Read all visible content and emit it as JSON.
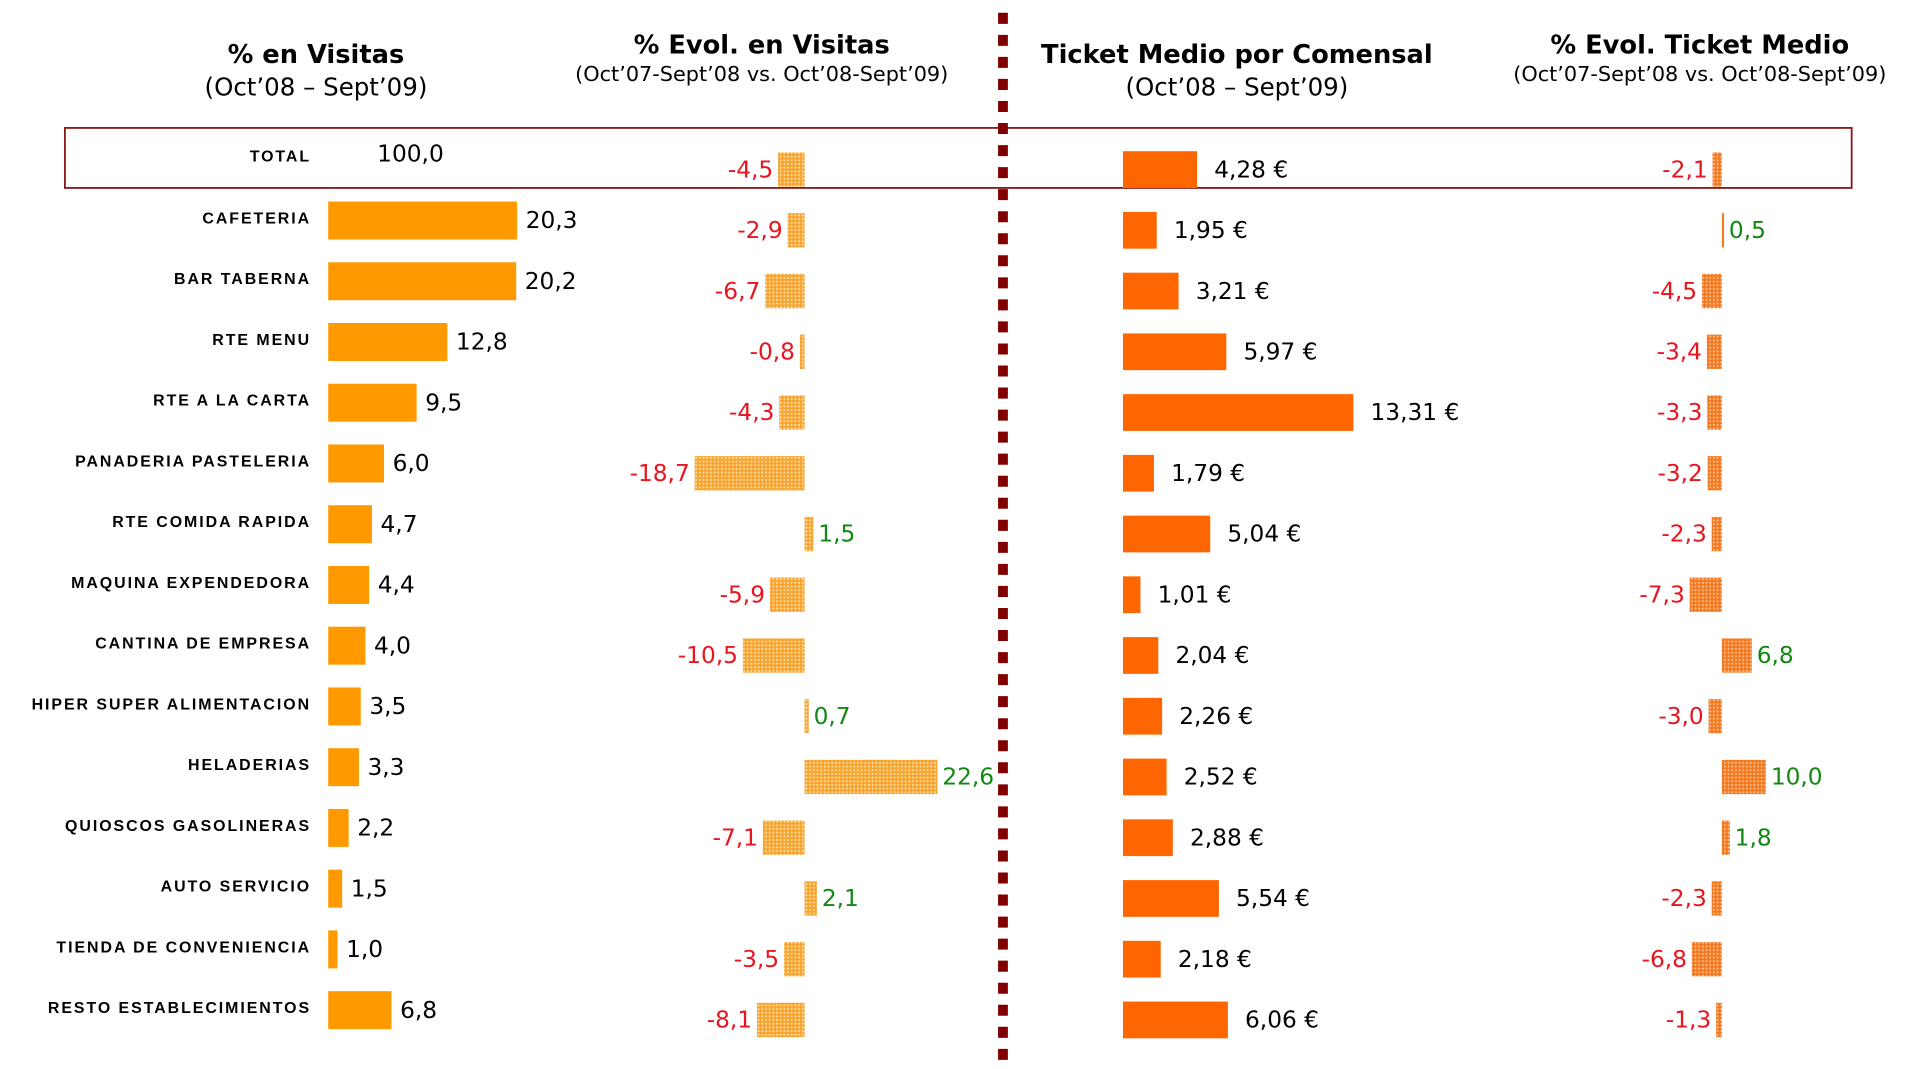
{
  "chart_data": [
    {
      "type": "hbar",
      "title": "% en Visitas",
      "subtitle": "(Oct’08 – Sept’09)",
      "total": {
        "label": "TOTAL",
        "value": 100.0,
        "value_label": "100,0"
      },
      "categories": [
        "CAFETERIA",
        "BAR TABERNA",
        "RTE MENU",
        "RTE A LA CARTA",
        "PANADERIA PASTELERIA",
        "RTE COMIDA RAPIDA",
        "MAQUINA EXPENDEDORA",
        "CANTINA DE EMPRESA",
        "HIPER SUPER ALIMENTACION",
        "HELADERIAS",
        "QUIOSCOS GASOLINERAS",
        "AUTO SERVICIO",
        "TIENDA DE CONVENIENCIA",
        "RESTO ESTABLECIMIENTOS"
      ],
      "values": [
        20.3,
        20.2,
        12.8,
        9.5,
        6.0,
        4.7,
        4.4,
        4.0,
        3.5,
        3.3,
        2.2,
        1.5,
        1.0,
        6.8
      ],
      "value_labels": [
        "20,3",
        "20,2",
        "12,8",
        "9,5",
        "6,0",
        "4,7",
        "4,4",
        "4,0",
        "3,5",
        "3,3",
        "2,2",
        "1,5",
        "1,0",
        "6,8"
      ],
      "color": "#ff9900",
      "hatched": false,
      "xlim": [
        0,
        25
      ]
    },
    {
      "type": "hbar",
      "title": "% Evol. en Visitas",
      "subtitle": "(Oct’07-Sept’08 vs. Oct’08-Sept’09)",
      "values": [
        -4.5,
        -2.9,
        -6.7,
        -0.8,
        -4.3,
        -18.7,
        1.5,
        -5.9,
        -10.5,
        0.7,
        22.6,
        -7.1,
        2.1,
        -3.5,
        -8.1
      ],
      "value_labels": [
        "-4,5",
        "-2,9",
        "-6,7",
        "-0,8",
        "-4,3",
        "-18,7",
        "1,5",
        "-5,9",
        "-10,5",
        "0,7",
        "22,6",
        "-7,1",
        "2,1",
        "-3,5",
        "-8,1"
      ],
      "color": "#f7a530",
      "hatched": true,
      "positive_color": "#118811",
      "negative_color": "#e8141e",
      "xlim": [
        -20,
        25
      ]
    },
    {
      "type": "hbar",
      "title": "Ticket Medio por Comensal",
      "subtitle": "(Oct’08 – Sept’09)",
      "values": [
        4.28,
        1.95,
        3.21,
        5.97,
        13.31,
        1.79,
        5.04,
        1.01,
        2.04,
        2.26,
        2.52,
        2.88,
        5.54,
        2.18,
        6.06
      ],
      "value_labels": [
        "4,28 €",
        "1,95 €",
        "3,21 €",
        "5,97 €",
        "13,31 €",
        "1,79 €",
        "5,04 €",
        "1,01 €",
        "2,04 €",
        "2,26 €",
        "2,52 €",
        "2,88 €",
        "5,54 €",
        "2,18 €",
        "6,06 €"
      ],
      "color": "#ff6600",
      "hatched": false,
      "xlim": [
        0,
        15
      ]
    },
    {
      "type": "hbar",
      "title": "% Evol. Ticket Medio",
      "subtitle": "(Oct’07-Sept’08 vs. Oct’08-Sept’09)",
      "values": [
        -2.1,
        0.5,
        -4.5,
        -3.4,
        -3.3,
        -3.2,
        -2.3,
        -7.3,
        6.8,
        -3.0,
        10.0,
        1.8,
        -2.3,
        -6.8,
        -1.3
      ],
      "value_labels": [
        "-2,1",
        "0,5",
        "-4,5",
        "-3,4",
        "-3,3",
        "-3,2",
        "-2,3",
        "-7,3",
        "6,8",
        "-3,0",
        "10,0",
        "1,8",
        "-2,3",
        "-6,8",
        "-1,3"
      ],
      "color": "#f37a20",
      "hatched": true,
      "positive_color": "#118811",
      "negative_color": "#e8141e",
      "xlim": [
        -10,
        12
      ]
    }
  ]
}
